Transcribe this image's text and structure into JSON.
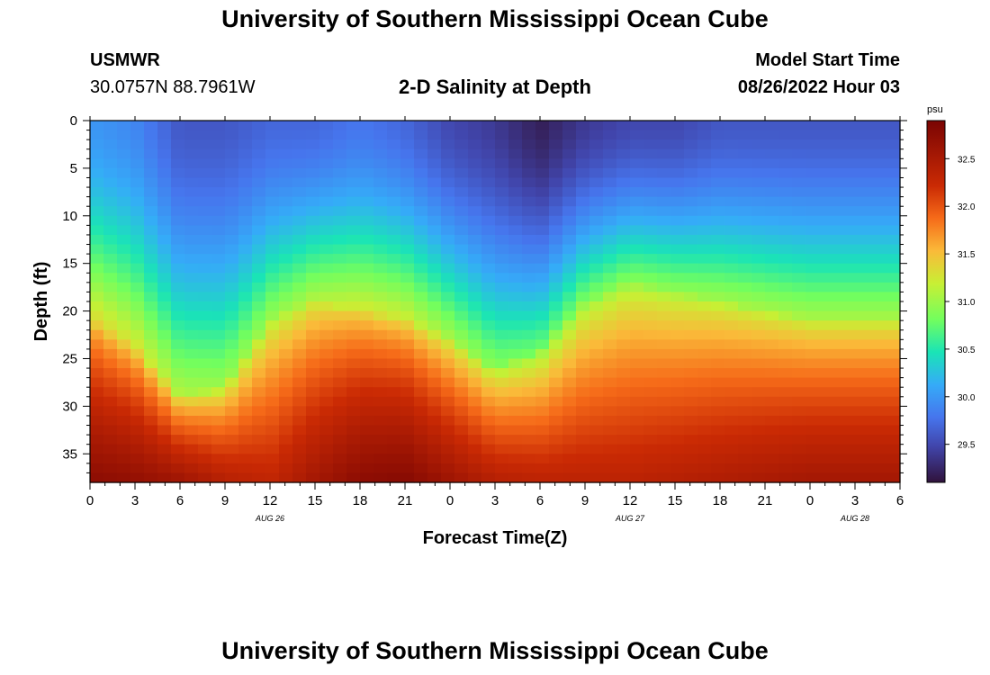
{
  "header": {
    "title": "University of Southern Mississippi Ocean Cube",
    "station": "USMWR",
    "coords": "30.0757N  88.7961W",
    "subtitle": "2-D Salinity at Depth",
    "model_label": "Model Start Time",
    "model_time": "08/26/2022 Hour 03"
  },
  "footer": {
    "title": "University of Southern Mississippi Ocean Cube"
  },
  "chart_data": {
    "type": "heatmap",
    "title": "2-D Salinity at Depth",
    "xlabel": "Forecast Time(Z)",
    "ylabel": "Depth (ft)",
    "x_ticks": [
      "0",
      "3",
      "6",
      "9",
      "12",
      "15",
      "18",
      "21",
      "0",
      "3",
      "6",
      "9",
      "12",
      "15",
      "18",
      "21",
      "0",
      "3",
      "6"
    ],
    "x_range_hours": [
      0,
      54
    ],
    "date_labels": [
      {
        "text": "AUG 26",
        "hour": 12
      },
      {
        "text": "AUG 27",
        "hour": 36
      },
      {
        "text": "AUG 28",
        "hour": 51
      }
    ],
    "y_ticks": [
      0,
      5,
      10,
      15,
      20,
      25,
      30,
      35
    ],
    "ylim": [
      0,
      38
    ],
    "colorbar": {
      "unit": "psu",
      "ticks": [
        "32.5",
        "32.0",
        "31.5",
        "31.0",
        "30.5",
        "30.0",
        "29.5"
      ],
      "range": [
        29.1,
        32.9
      ]
    },
    "halocline_depth_ft": {
      "hours": [
        0,
        3,
        6,
        9,
        12,
        15,
        18,
        21,
        24,
        27,
        30,
        33,
        36,
        39,
        42,
        45,
        48,
        51,
        54
      ],
      "values": [
        21,
        24,
        29,
        28,
        21,
        19,
        20,
        21,
        23,
        26,
        24,
        19,
        17,
        18,
        19,
        20,
        21,
        21,
        21
      ]
    },
    "surface_salinity_psu": {
      "hours": [
        0,
        3,
        6,
        9,
        12,
        15,
        18,
        21,
        24,
        27,
        30,
        33,
        36,
        39,
        42,
        45,
        48,
        51,
        54
      ],
      "values": [
        30.0,
        29.9,
        29.6,
        29.6,
        29.7,
        29.7,
        29.8,
        29.7,
        29.5,
        29.4,
        29.2,
        29.4,
        29.5,
        29.5,
        29.6,
        29.6,
        29.6,
        29.6,
        29.6
      ]
    },
    "bottom_salinity_psu": {
      "hours": [
        0,
        3,
        6,
        9,
        12,
        15,
        18,
        21,
        24,
        27,
        30,
        33,
        36,
        39,
        42,
        45,
        48,
        51,
        54
      ],
      "values": [
        32.75,
        32.7,
        32.6,
        32.4,
        32.3,
        32.55,
        32.75,
        32.8,
        32.6,
        32.4,
        32.35,
        32.35,
        32.35,
        32.4,
        32.45,
        32.5,
        32.55,
        32.55,
        32.55
      ]
    }
  }
}
